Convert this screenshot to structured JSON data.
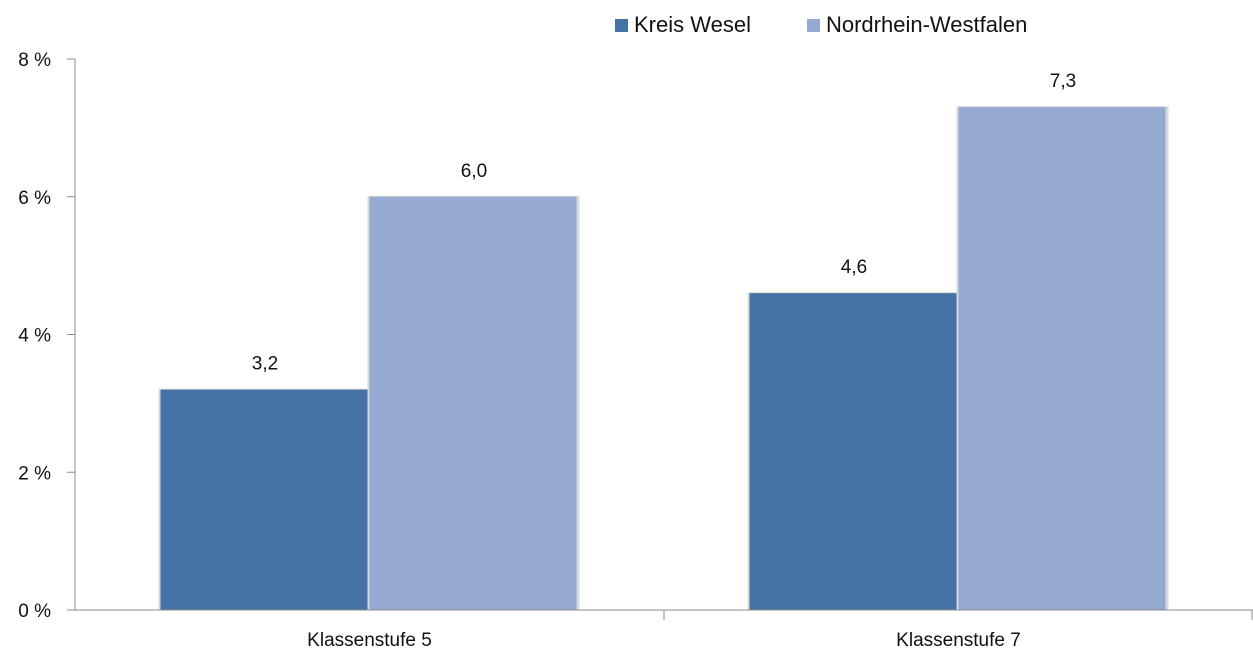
{
  "chart_data": {
    "type": "bar",
    "categories": [
      "Klassenstufe 5",
      "Klassenstufe 7"
    ],
    "series": [
      {
        "name": "Kreis Wesel",
        "color": "#4472A4",
        "values": [
          3.2,
          4.6
        ],
        "labels": [
          "3,2",
          "4,6"
        ]
      },
      {
        "name": "Nordrhein-Westfalen",
        "color": "#95A9D1",
        "values": [
          6.0,
          7.3
        ],
        "labels": [
          "6,0",
          "7,3"
        ]
      }
    ],
    "ylim": [
      0,
      8
    ],
    "yticks": [
      0,
      2,
      4,
      6,
      8
    ],
    "ytick_labels": [
      "0 %",
      "2 %",
      "4 %",
      "6 %",
      "8 %"
    ],
    "title": "",
    "xlabel": "",
    "ylabel": "",
    "grid": false,
    "legend_position": "top-right"
  }
}
